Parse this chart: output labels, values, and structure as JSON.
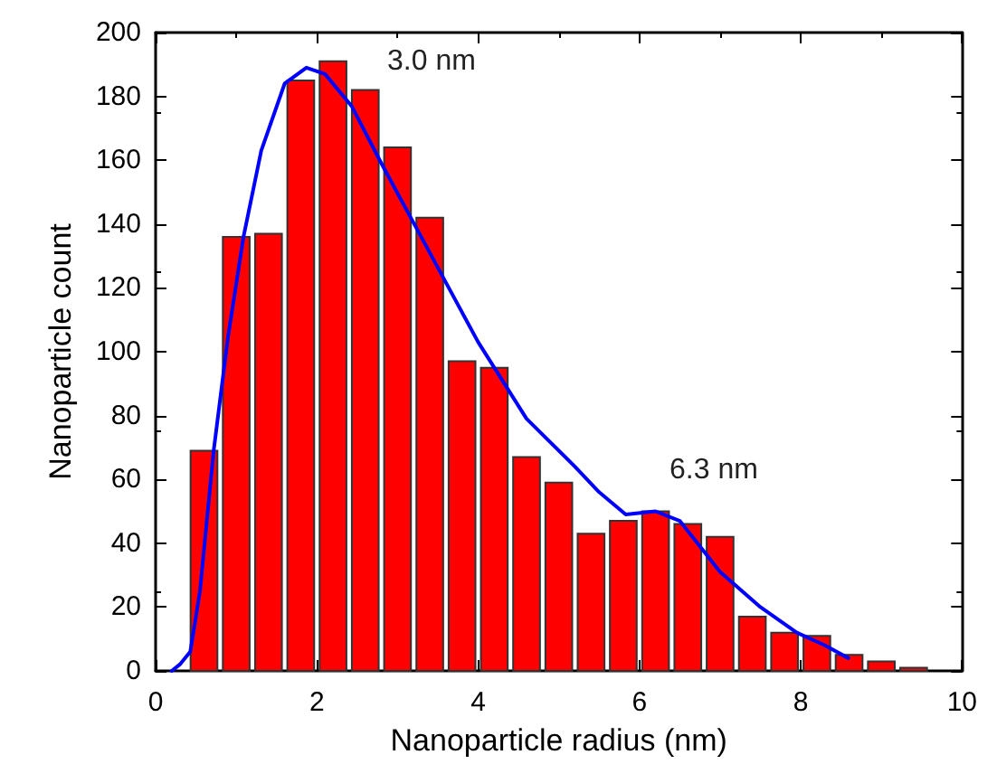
{
  "chart_data": {
    "type": "histogram",
    "xlabel": "Nanoparticle radius (nm)",
    "ylabel": "Nanoparticle count",
    "bins": [
      0.4,
      0.8,
      1.2,
      1.6,
      2.0,
      2.4,
      2.8,
      3.2,
      3.6,
      4.0,
      4.4,
      4.8,
      5.2,
      5.6,
      6.0,
      6.4,
      6.8,
      7.2,
      7.6,
      8.0,
      8.4,
      8.8,
      9.2,
      9.6
    ],
    "values": [
      69,
      136,
      137,
      185,
      191,
      182,
      164,
      142,
      97,
      95,
      67,
      59,
      43,
      47,
      50,
      46,
      42,
      17,
      12,
      11,
      5,
      3,
      1
    ],
    "color": "#ff0000",
    "series": [
      {
        "type": "line",
        "color": "#0000ff",
        "x": [
          0.2,
          0.3,
          0.43,
          0.55,
          0.72,
          0.9,
          1.09,
          1.31,
          1.6,
          1.87,
          2.1,
          2.43,
          2.8,
          3.25,
          4.0,
          4.6,
          5.2,
          5.5,
          5.83,
          6.2,
          6.5,
          7.0,
          7.5,
          7.95,
          8.3,
          8.59
        ],
        "values": [
          0,
          2,
          6,
          25,
          69,
          105,
          136,
          163,
          184,
          189,
          187,
          177,
          159,
          138,
          103,
          79,
          64,
          56,
          49,
          50,
          47,
          31,
          20,
          12,
          8,
          4
        ]
      }
    ],
    "annotations": [
      "3.0 nm",
      "6.3 nm"
    ],
    "xlim": [
      0,
      10
    ],
    "xticks": [
      0,
      2,
      4,
      6,
      8,
      10
    ],
    "ylim": [
      0,
      200
    ],
    "yticks": [
      0,
      20,
      40,
      60,
      80,
      100,
      120,
      140,
      160,
      180,
      200
    ],
    "grid": false
  }
}
